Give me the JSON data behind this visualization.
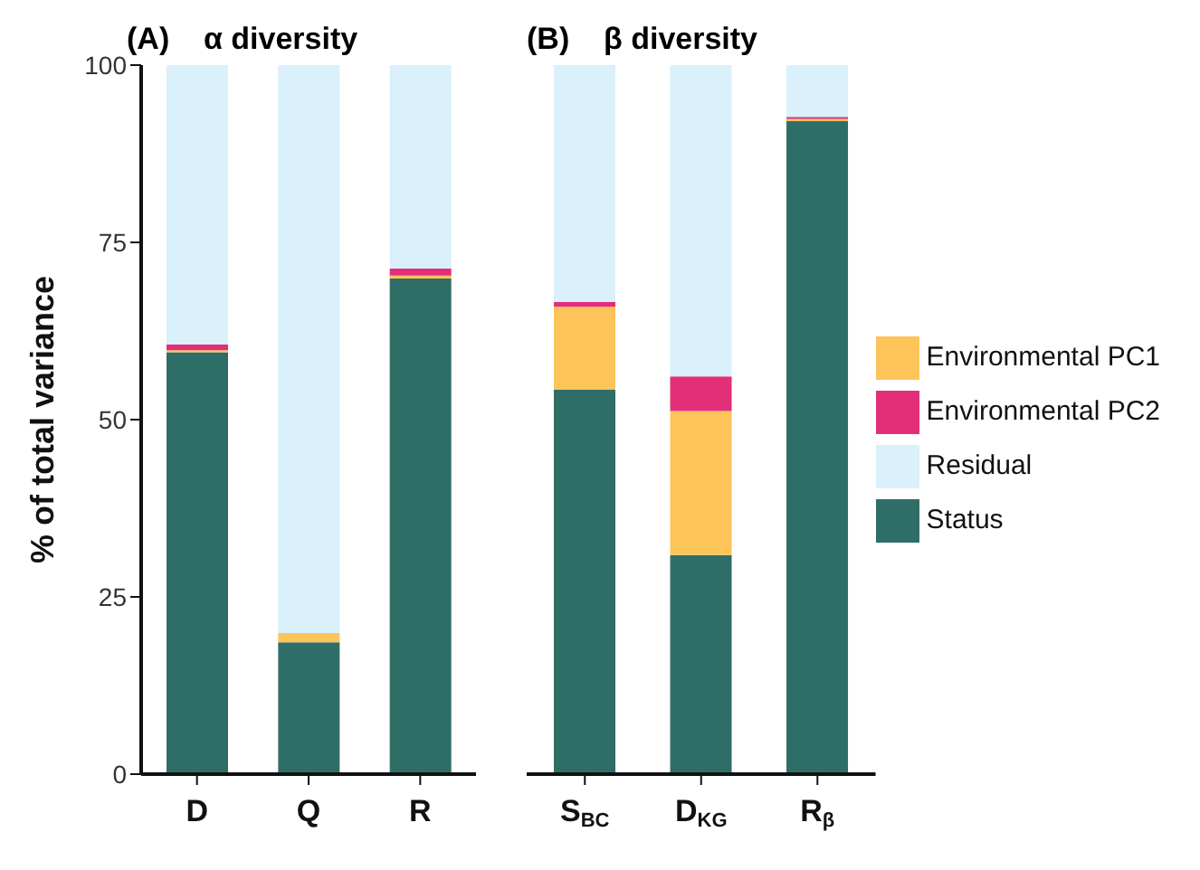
{
  "chart_data": [
    {
      "type": "bar",
      "title": "(A)    α diversity",
      "ylabel": "% of total variance",
      "categories": [
        "D",
        "Q",
        "R"
      ],
      "stacked": true,
      "ylim": [
        0,
        100
      ],
      "yticks": [
        0,
        25,
        50,
        75,
        100
      ],
      "grid": false,
      "legend": false,
      "series": [
        {
          "color": "#2f6e67",
          "values": [
            59.5,
            18.6,
            69.9
          ]
        },
        {
          "color": "#fdc45a",
          "values": [
            0.3,
            1.3,
            0.4
          ]
        },
        {
          "color": "#e22f78",
          "values": [
            0.8,
            0,
            1.0
          ]
        },
        {
          "color": "#daf0fb",
          "values": [
            39.4,
            80.1,
            28.7
          ]
        }
      ]
    },
    {
      "type": "bar",
      "title": "(B)    β diversity",
      "categories": [
        "S$_{BC}$",
        "D$_{KG}$",
        "R$_{β}$"
      ],
      "stacked": true,
      "ylim": [
        0,
        100
      ],
      "yticks": [
        0,
        25,
        50,
        75,
        100
      ],
      "tick_labels": "x",
      "grid": false,
      "legend": "right",
      "series": [
        {
          "name": "Status",
          "color": "#2f6e67",
          "values": [
            54.2,
            30.9,
            92.1
          ]
        },
        {
          "name": "Environmental PC1",
          "color": "#fdc45a",
          "values": [
            11.7,
            20.3,
            0.3
          ]
        },
        {
          "name": "Environmental PC2",
          "color": "#e22f78",
          "values": [
            0.7,
            4.9,
            0.3
          ]
        },
        {
          "name": "Residual",
          "color": "#daf0fb",
          "values": [
            33.4,
            43.9,
            7.3
          ]
        }
      ]
    }
  ]
}
